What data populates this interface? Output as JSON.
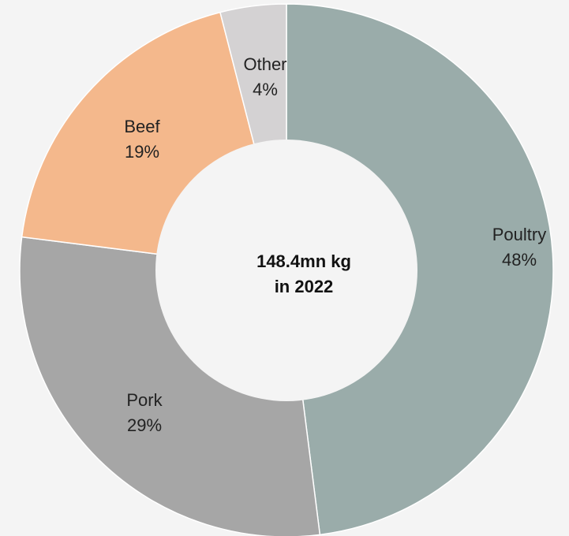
{
  "chart_data": {
    "type": "pie",
    "variant": "donut",
    "center_label": [
      "148.4mn kg",
      "in 2022"
    ],
    "slices": [
      {
        "name": "Poultry",
        "value": 48,
        "label": "48%",
        "color": "#9aacaa"
      },
      {
        "name": "Pork",
        "value": 29,
        "label": "29%",
        "color": "#a6a6a6"
      },
      {
        "name": "Beef",
        "value": 19,
        "label": "19%",
        "color": "#f4b88c"
      },
      {
        "name": "Other",
        "value": 4,
        "label": "4%",
        "color": "#d4d2d3"
      }
    ],
    "start_angle_deg": 0,
    "direction": "clockwise",
    "background": "#f4f4f4",
    "center_fill": "#f4f4f4"
  }
}
